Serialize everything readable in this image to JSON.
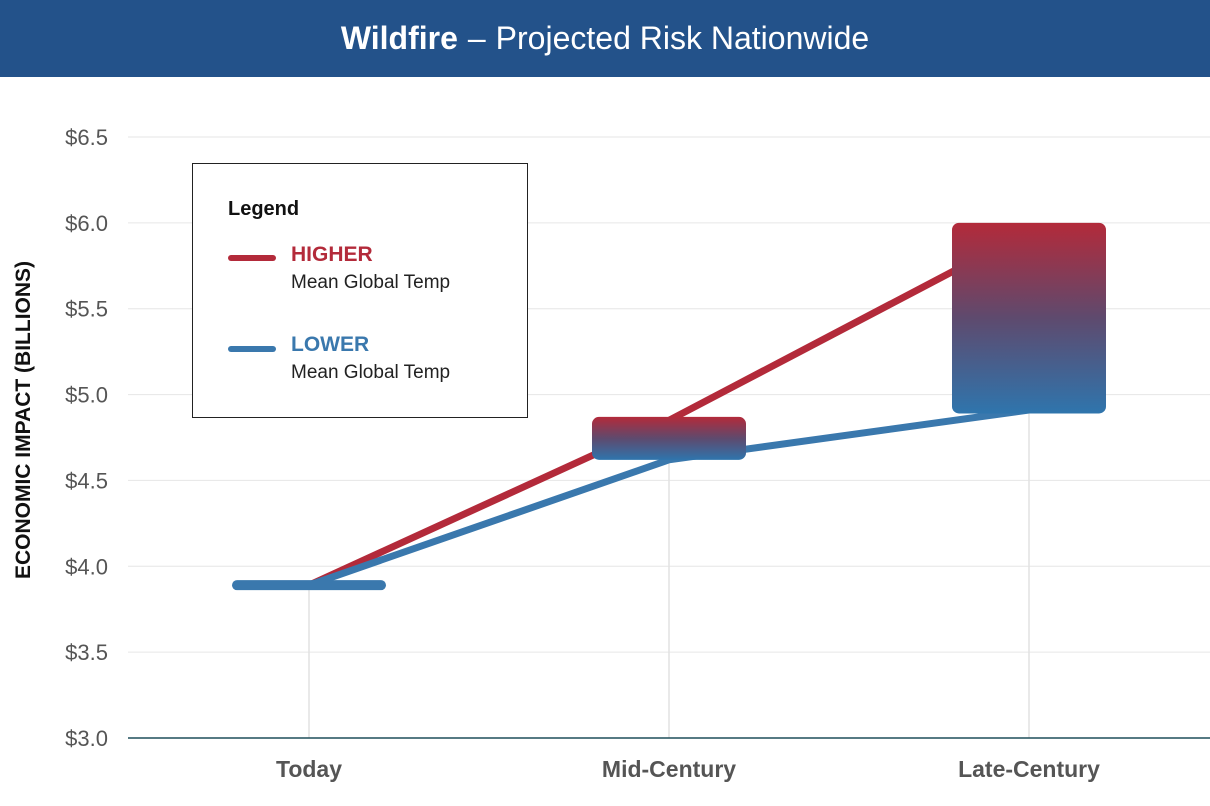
{
  "header": {
    "title_bold": "Wildfire",
    "title_dash": "–",
    "title_rest": "Projected Risk Nationwide"
  },
  "legend": {
    "title": "Legend",
    "items": [
      {
        "name": "HIGHER",
        "desc": "Mean Global Temp",
        "color": "#b32a3a"
      },
      {
        "name": "LOWER",
        "desc": "Mean Global Temp",
        "color": "#3a78ad"
      }
    ]
  },
  "chart_data": {
    "type": "line",
    "title": "Wildfire – Projected Risk Nationwide",
    "xlabel": "",
    "ylabel": "ECONOMIC IMPACT (BILLIONS)",
    "categories": [
      "Today",
      "Mid-Century",
      "Late-Century"
    ],
    "ylim": [
      3.0,
      6.5
    ],
    "yticks": [
      3.0,
      3.5,
      4.0,
      4.5,
      5.0,
      5.5,
      6.0,
      6.5
    ],
    "ytick_labels": [
      "$3.0",
      "$3.5",
      "$4.0",
      "$4.5",
      "$5.0",
      "$5.5",
      "$6.0",
      "$6.5"
    ],
    "grid": true,
    "legend_position": "top-left",
    "series": [
      {
        "name": "HIGHER",
        "values": [
          3.89,
          4.85,
          5.95
        ],
        "color": "#b32a3a"
      },
      {
        "name": "LOWER",
        "values": [
          3.89,
          4.62,
          4.91
        ],
        "color": "#3a78ad"
      }
    ],
    "ranges": [
      {
        "category": "Today",
        "low": 3.89,
        "high": 3.89
      },
      {
        "category": "Mid-Century",
        "low": 4.62,
        "high": 4.87
      },
      {
        "category": "Late-Century",
        "low": 4.89,
        "high": 6.0
      }
    ]
  }
}
